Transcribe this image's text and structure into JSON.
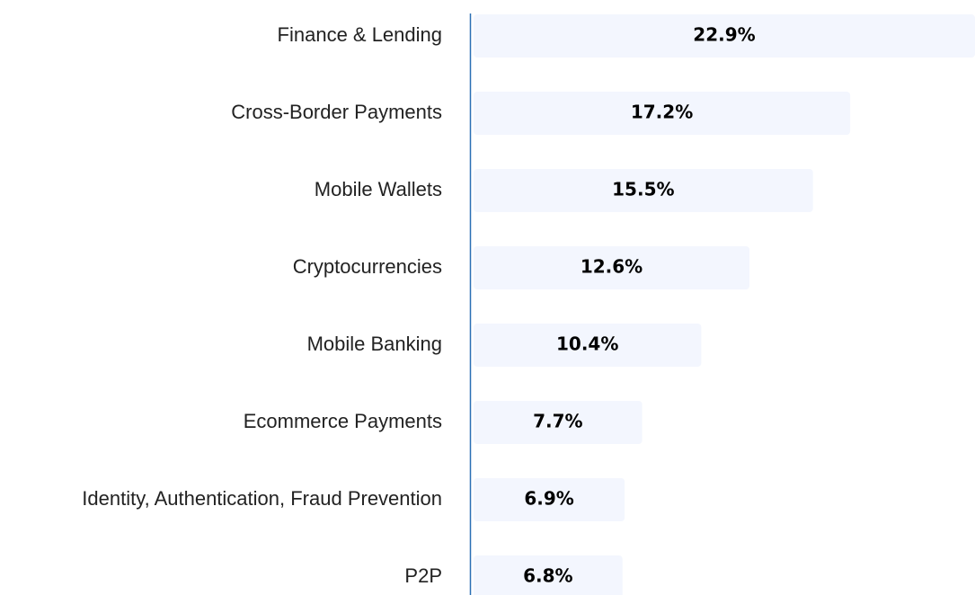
{
  "chart_data": {
    "type": "bar",
    "orientation": "horizontal",
    "categories": [
      "Finance & Lending",
      "Cross-Border Payments",
      "Mobile Wallets",
      "Cryptocurrencies",
      "Mobile Banking",
      "Ecommerce Payments",
      "Identity, Authentication, Fraud Prevention",
      "P2P"
    ],
    "values": [
      22.9,
      17.2,
      15.5,
      12.6,
      10.4,
      7.7,
      6.9,
      6.8
    ],
    "value_labels": [
      "22.9%",
      "17.2%",
      "15.5%",
      "12.6%",
      "10.4%",
      "7.7%",
      "6.9%",
      "6.8%"
    ],
    "color": "#f3f6fe"
  }
}
